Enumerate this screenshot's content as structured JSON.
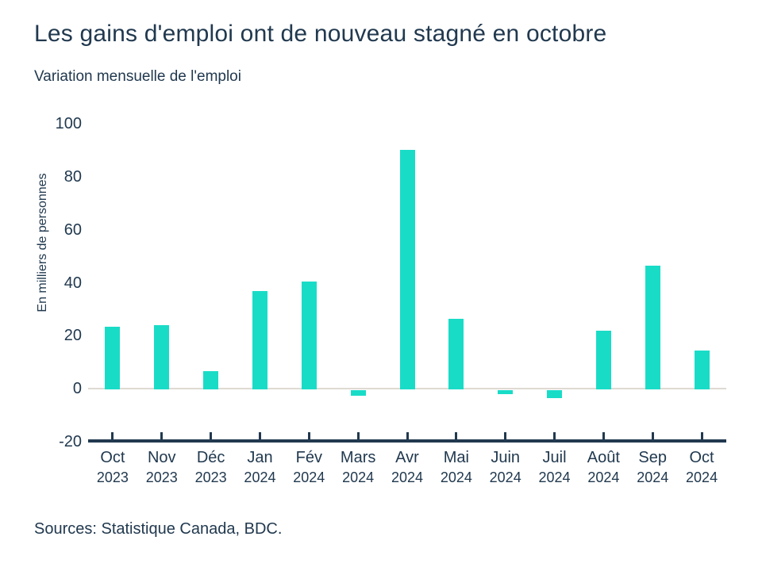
{
  "chart_data": {
    "type": "bar",
    "title": "Les gains d'emploi ont de nouveau stagné en octobre",
    "subtitle": "Variation mensuelle de l'emploi",
    "ylabel": "En milliers de personnes",
    "xlabel": "",
    "ylim": [
      -20,
      100
    ],
    "yticks": [
      100,
      80,
      60,
      40,
      20,
      0,
      -20
    ],
    "categories": [
      {
        "month": "Oct",
        "year": "2023"
      },
      {
        "month": "Nov",
        "year": "2023"
      },
      {
        "month": "Déc",
        "year": "2023"
      },
      {
        "month": "Jan",
        "year": "2024"
      },
      {
        "month": "Fév",
        "year": "2024"
      },
      {
        "month": "Mars",
        "year": "2024"
      },
      {
        "month": "Avr",
        "year": "2024"
      },
      {
        "month": "Mai",
        "year": "2024"
      },
      {
        "month": "Juin",
        "year": "2024"
      },
      {
        "month": "Juil",
        "year": "2024"
      },
      {
        "month": "Août",
        "year": "2024"
      },
      {
        "month": "Sep",
        "year": "2024"
      },
      {
        "month": "Oct",
        "year": "2024"
      }
    ],
    "values": [
      23.5,
      24,
      6.5,
      37,
      40.5,
      -2,
      90,
      26.5,
      -1.5,
      -3,
      22,
      46.5,
      14.5
    ],
    "grid": false,
    "legend": "none",
    "bar_color": "#19dcc7",
    "axis_color": "#21394f",
    "zero_line_color": "#ded9d2",
    "text_color": "#21394f",
    "background_color": "#ffffff"
  },
  "footer": {
    "source": "Sources: Statistique Canada, BDC."
  }
}
